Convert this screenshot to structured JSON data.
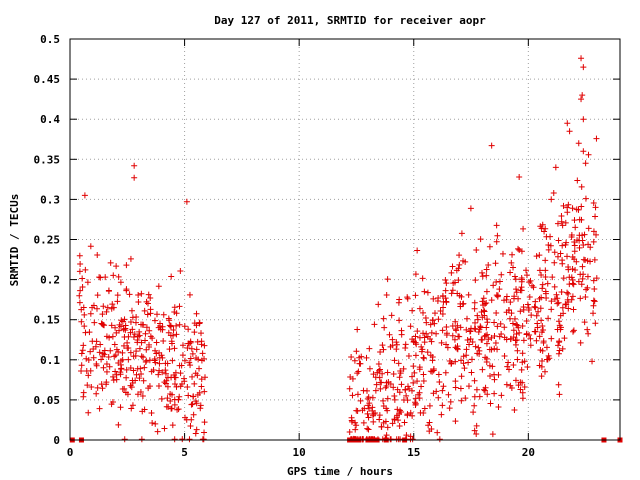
{
  "chart_data": {
    "type": "scatter",
    "title": "Day 127 of 2011, SRMTID for receiver aopr",
    "xlabel": "GPS time / hours",
    "ylabel": "SRMTID / TECUs",
    "xlim": [
      0,
      24
    ],
    "ylim": [
      0,
      0.5
    ],
    "x_ticks": [
      0,
      5,
      10,
      15,
      20
    ],
    "y_ticks": [
      0,
      0.05,
      0.1,
      0.15,
      0.2,
      0.25,
      0.3,
      0.35,
      0.4,
      0.45,
      0.5
    ],
    "grid": true,
    "marker": "+",
    "series": [
      {
        "color": "#e00000",
        "clusters": [
          {
            "x_range": [
              0.4,
              5.9
            ],
            "y_envelope": [
              [
                0.4,
                0.14
              ],
              [
                1.0,
                0.13
              ],
              [
                2.0,
                0.12
              ],
              [
                3.0,
                0.11
              ],
              [
                4.0,
                0.09
              ],
              [
                5.0,
                0.08
              ],
              [
                5.9,
                0.07
              ]
            ],
            "spread": 0.06
          },
          {
            "x_range": [
              12.2,
              23.0
            ],
            "y_envelope": [
              [
                12.2,
                0.02
              ],
              [
                13.0,
                0.03
              ],
              [
                14.0,
                0.06
              ],
              [
                15.0,
                0.1
              ],
              [
                16.0,
                0.11
              ],
              [
                17.0,
                0.14
              ],
              [
                18.0,
                0.13
              ],
              [
                19.0,
                0.14
              ],
              [
                20.0,
                0.15
              ],
              [
                21.0,
                0.18
              ],
              [
                22.0,
                0.22
              ],
              [
                23.0,
                0.24
              ]
            ],
            "spread": 0.07
          }
        ],
        "points": [
          {
            "x": 0.65,
            "y": 0.305
          },
          {
            "x": 2.8,
            "y": 0.342
          },
          {
            "x": 2.8,
            "y": 0.327
          },
          {
            "x": 5.1,
            "y": 0.297
          },
          {
            "x": 18.4,
            "y": 0.367
          },
          {
            "x": 19.6,
            "y": 0.328
          },
          {
            "x": 21.2,
            "y": 0.34
          },
          {
            "x": 21.7,
            "y": 0.395
          },
          {
            "x": 21.8,
            "y": 0.385
          },
          {
            "x": 22.3,
            "y": 0.425
          },
          {
            "x": 22.35,
            "y": 0.43
          },
          {
            "x": 22.4,
            "y": 0.4
          },
          {
            "x": 22.3,
            "y": 0.476
          },
          {
            "x": 22.4,
            "y": 0.465
          },
          {
            "x": 22.2,
            "y": 0.37
          },
          {
            "x": 22.5,
            "y": 0.345
          },
          {
            "x": 22.4,
            "y": 0.36
          },
          {
            "x": 21.0,
            "y": 0.3
          }
        ],
        "zero_points": [
          0.1,
          0.5,
          12.2,
          12.4,
          12.6,
          13.0,
          13.2,
          13.4,
          13.8,
          14.6,
          23.3,
          24.0
        ]
      }
    ]
  }
}
